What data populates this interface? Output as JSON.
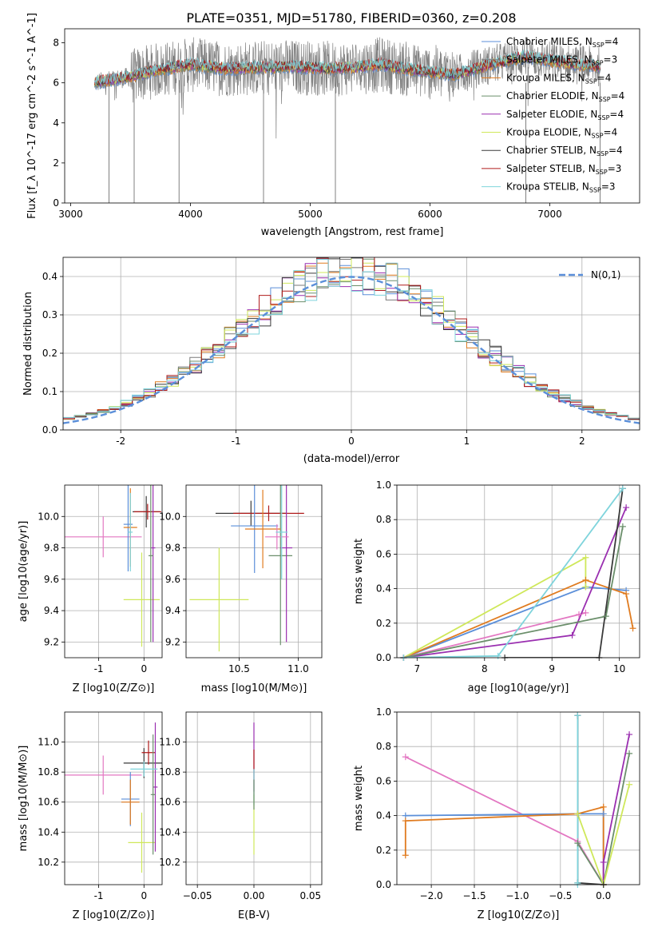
{
  "title": "PLATE=0351, MJD=51780, FIBERID=0360, z=0.208",
  "colors": {
    "Chabrier MILES": "#5b8fd9",
    "Salpeter MILES": "#7a7a7a",
    "Kroupa MILES": "#e07b1f",
    "Chabrier ELODIE": "#6b8f6b",
    "Salpeter ELODIE": "#9a2fb0",
    "Kroupa ELODIE": "#cfe85a",
    "Chabrier STELIB": "#3a3a3a",
    "Salpeter STELIB": "#b01c1c",
    "Kroupa STELIB": "#7fd4dc",
    "pink": "#e377c2",
    "normal": "#5b8fd9",
    "data": "#808080"
  },
  "chart_data": [
    {
      "id": "spectrum",
      "type": "line",
      "xlabel": "wavelength [Angstrom, rest frame]",
      "ylabel": "Flux [f_λ 10^-17 erg cm^-2 s^-1 A^-1]",
      "xlim": [
        2950,
        7750
      ],
      "ylim": [
        0,
        8.7
      ],
      "xticks": [
        3000,
        4000,
        5000,
        6000,
        7000
      ],
      "yticks": [
        0,
        2,
        4,
        6,
        8
      ],
      "legend_position": "right",
      "legend": [
        {
          "label": "Chabrier MILES, N_SSP=4",
          "color": "#5b8fd9"
        },
        {
          "label": "Salpeter MILES, N_SSP=3",
          "color": "#7a7a7a"
        },
        {
          "label": "Kroupa MILES, N_SSP=4",
          "color": "#e07b1f"
        },
        {
          "label": "Chabrier ELODIE, N_SSP=4",
          "color": "#6b8f6b"
        },
        {
          "label": "Salpeter ELODIE, N_SSP=4",
          "color": "#9a2fb0"
        },
        {
          "label": "Kroupa ELODIE, N_SSP=4",
          "color": "#cfe85a"
        },
        {
          "label": "Chabrier STELIB, N_SSP=4",
          "color": "#3a3a3a"
        },
        {
          "label": "Salpeter STELIB, N_SSP=3",
          "color": "#b01c1c"
        },
        {
          "label": "Kroupa STELIB, N_SSP=3",
          "color": "#7fd4dc"
        }
      ],
      "x_range_data": [
        3200,
        7420
      ],
      "continuum_knots": [
        [
          3200,
          6.0
        ],
        [
          3500,
          6.3
        ],
        [
          3700,
          6.6
        ],
        [
          4000,
          6.9
        ],
        [
          4300,
          6.7
        ],
        [
          4800,
          6.8
        ],
        [
          5200,
          6.7
        ],
        [
          5600,
          6.9
        ],
        [
          5900,
          6.6
        ],
        [
          6200,
          6.4
        ],
        [
          6500,
          6.9
        ],
        [
          6800,
          7.3
        ],
        [
          7100,
          7.0
        ],
        [
          7400,
          6.8
        ]
      ],
      "drops": [
        [
          3320,
          0
        ],
        [
          3530,
          0
        ],
        [
          3905,
          0
        ],
        [
          4610,
          0
        ],
        [
          5210,
          0
        ],
        [
          6800,
          0
        ],
        [
          7420,
          0
        ]
      ]
    },
    {
      "id": "residuals",
      "type": "step",
      "xlabel": "(data-model)/error",
      "ylabel": "Normed distribution",
      "xlim": [
        -2.5,
        2.5
      ],
      "ylim": [
        0,
        0.45
      ],
      "xticks": [
        -2,
        -1,
        0,
        1,
        2
      ],
      "yticks": [
        0.0,
        0.1,
        0.2,
        0.3,
        0.4
      ],
      "normal_label": "N(0,1)",
      "bin_width": 0.1,
      "series_count": 9
    },
    {
      "id": "z-age",
      "type": "errorbar",
      "xlabel": "Z [log10(Z/Z⊙)]",
      "ylabel": "age [log10(age/yr)]",
      "xlim": [
        -1.75,
        0.4
      ],
      "ylim": [
        9.1,
        10.2
      ],
      "xticks": [
        -1,
        0
      ],
      "yticks": [
        9.2,
        9.4,
        9.6,
        9.8,
        10.0
      ],
      "points": [
        {
          "x": -0.9,
          "y": 9.87,
          "xerr": 0.85,
          "yerr": 0.13,
          "color": "#e377c2"
        },
        {
          "x": -0.35,
          "y": 9.95,
          "xerr": 0.1,
          "yerr": 0.3,
          "color": "#5b8fd9"
        },
        {
          "x": -0.3,
          "y": 9.93,
          "xerr": 0.15,
          "yerr": 0.25,
          "color": "#e07b1f"
        },
        {
          "x": 0.05,
          "y": 10.03,
          "xerr": 0.3,
          "yerr": 0.1,
          "color": "#3a3a3a"
        },
        {
          "x": 0.08,
          "y": 10.03,
          "xerr": 0.3,
          "yerr": 0.05,
          "color": "#b01c1c"
        },
        {
          "x": -0.05,
          "y": 9.47,
          "xerr": 0.4,
          "yerr": 0.3,
          "color": "#cfe85a"
        },
        {
          "x": 0.2,
          "y": 9.8,
          "xerr": 0.05,
          "yerr": 0.6,
          "color": "#9a2fb0"
        },
        {
          "x": 0.15,
          "y": 9.75,
          "xerr": 0.05,
          "yerr": 0.55,
          "color": "#6b8f6b"
        },
        {
          "x": -0.3,
          "y": 9.9,
          "xerr": 0.05,
          "yerr": 0.25,
          "color": "#7fd4dc"
        }
      ]
    },
    {
      "id": "mass-age",
      "type": "errorbar",
      "xlabel": "mass [log10(M/M⊙)]",
      "ylabel": "",
      "xlim": [
        10.05,
        11.2
      ],
      "ylim": [
        9.1,
        10.2
      ],
      "xticks": [
        10.5,
        11.0
      ],
      "yticks": [
        9.2,
        9.4,
        9.6,
        9.8,
        10.0
      ],
      "points": [
        {
          "x": 10.33,
          "y": 9.47,
          "xerr": 0.25,
          "yerr": 0.33,
          "color": "#cfe85a"
        },
        {
          "x": 10.6,
          "y": 10.02,
          "xerr": 0.3,
          "yerr": 0.08,
          "color": "#3a3a3a"
        },
        {
          "x": 10.75,
          "y": 10.02,
          "xerr": 0.3,
          "yerr": 0.05,
          "color": "#b01c1c"
        },
        {
          "x": 10.85,
          "y": 9.75,
          "xerr": 0.1,
          "yerr": 0.57,
          "color": "#6b8f6b"
        },
        {
          "x": 10.9,
          "y": 9.8,
          "xerr": 0.05,
          "yerr": 0.6,
          "color": "#9a2fb0"
        },
        {
          "x": 10.63,
          "y": 9.94,
          "xerr": 0.2,
          "yerr": 0.3,
          "color": "#5b8fd9"
        },
        {
          "x": 10.7,
          "y": 9.92,
          "xerr": 0.15,
          "yerr": 0.25,
          "color": "#e07b1f"
        },
        {
          "x": 10.82,
          "y": 9.87,
          "xerr": 0.1,
          "yerr": 0.08,
          "color": "#e377c2"
        },
        {
          "x": 10.86,
          "y": 9.9,
          "xerr": 0.05,
          "yerr": 0.3,
          "color": "#7fd4dc"
        }
      ]
    },
    {
      "id": "age-weight",
      "type": "line",
      "xlabel": "age [log10(age/yr)]",
      "ylabel": "mass weight",
      "xlim": [
        6.7,
        10.3
      ],
      "ylim": [
        0,
        1.0
      ],
      "xticks": [
        7,
        8,
        9,
        10
      ],
      "yticks": [
        0.0,
        0.2,
        0.4,
        0.6,
        0.8,
        1.0
      ],
      "series": [
        {
          "color": "#5b8fd9",
          "x": [
            6.8,
            9.5,
            10.1
          ],
          "y": [
            0.0,
            0.41,
            0.39
          ]
        },
        {
          "color": "#e07b1f",
          "x": [
            6.8,
            9.5,
            10.1,
            10.2
          ],
          "y": [
            0.0,
            0.45,
            0.37,
            0.17
          ]
        },
        {
          "color": "#cfe85a",
          "x": [
            6.8,
            9.5,
            9.5
          ],
          "y": [
            0.0,
            0.58,
            0.41
          ]
        },
        {
          "color": "#e377c2",
          "x": [
            6.8,
            9.4,
            9.5
          ],
          "y": [
            0.0,
            0.25,
            0.26
          ]
        },
        {
          "color": "#9a2fb0",
          "x": [
            6.8,
            9.3,
            10.1
          ],
          "y": [
            0.0,
            0.13,
            0.87
          ]
        },
        {
          "color": "#6b8f6b",
          "x": [
            6.8,
            9.8,
            10.05
          ],
          "y": [
            0.0,
            0.24,
            0.76
          ]
        },
        {
          "color": "#3a3a3a",
          "x": [
            8.3,
            9.7,
            10.05
          ],
          "y": [
            0.0,
            0.0,
            0.98
          ]
        },
        {
          "color": "#7fd4dc",
          "x": [
            6.8,
            8.2,
            10.05
          ],
          "y": [
            0.0,
            0.01,
            0.98
          ]
        }
      ]
    },
    {
      "id": "z-mass",
      "type": "errorbar",
      "xlabel": "Z [log10(Z/Z⊙)]",
      "ylabel": "mass [log10(M/M⊙)]",
      "xlim": [
        -1.75,
        0.4
      ],
      "ylim": [
        10.05,
        11.2
      ],
      "xticks": [
        -1,
        0
      ],
      "yticks": [
        10.2,
        10.4,
        10.6,
        10.8,
        11.0
      ],
      "points": [
        {
          "x": -0.9,
          "y": 10.78,
          "xerr": 0.85,
          "yerr": 0.13,
          "color": "#e377c2"
        },
        {
          "x": -0.3,
          "y": 10.62,
          "xerr": 0.2,
          "yerr": 0.18,
          "color": "#5b8fd9"
        },
        {
          "x": -0.3,
          "y": 10.6,
          "xerr": 0.2,
          "yerr": 0.15,
          "color": "#e07b1f"
        },
        {
          "x": 0.0,
          "y": 10.86,
          "xerr": 0.45,
          "yerr": 0.1,
          "color": "#3a3a3a"
        },
        {
          "x": 0.1,
          "y": 10.93,
          "xerr": 0.15,
          "yerr": 0.08,
          "color": "#b01c1c"
        },
        {
          "x": -0.05,
          "y": 10.33,
          "xerr": 0.3,
          "yerr": 0.2,
          "color": "#cfe85a"
        },
        {
          "x": 0.25,
          "y": 10.7,
          "xerr": 0.05,
          "yerr": 0.43,
          "color": "#9a2fb0"
        },
        {
          "x": 0.2,
          "y": 10.65,
          "xerr": 0.05,
          "yerr": 0.4,
          "color": "#6b8f6b"
        },
        {
          "x": 0.0,
          "y": 10.82,
          "xerr": 0.3,
          "yerr": 0.05,
          "color": "#7fd4dc"
        }
      ]
    },
    {
      "id": "ebv-mass",
      "type": "errorbar",
      "xlabel": "E(B-V)",
      "ylabel": "",
      "xlim": [
        -0.06,
        0.06
      ],
      "ylim": [
        10.05,
        11.2
      ],
      "xticks": [
        -0.05,
        0.0,
        0.05
      ],
      "yticks": [
        10.2,
        10.4,
        10.6,
        10.8,
        11.0
      ],
      "points": [
        {
          "x": 0.0,
          "y": 10.9,
          "xerr": 0.0,
          "yerr": 0.23,
          "color": "#9a2fb0"
        },
        {
          "x": 0.0,
          "y": 10.85,
          "xerr": 0.0,
          "yerr": 0.1,
          "color": "#b01c1c"
        },
        {
          "x": 0.0,
          "y": 10.45,
          "xerr": 0.0,
          "yerr": 0.2,
          "color": "#cfe85a"
        },
        {
          "x": 0.0,
          "y": 10.7,
          "xerr": 0.0,
          "yerr": 0.12,
          "color": "#7fd4dc"
        },
        {
          "x": 0.0,
          "y": 10.65,
          "xerr": 0.0,
          "yerr": 0.1,
          "color": "#6b8f6b"
        }
      ]
    },
    {
      "id": "z-weight",
      "type": "line",
      "xlabel": "Z [log10(Z/Z⊙)]",
      "ylabel": "mass weight",
      "xlim": [
        -2.4,
        0.42
      ],
      "ylim": [
        0,
        1.0
      ],
      "xticks": [
        -2.0,
        -1.5,
        -1.0,
        -0.5,
        0.0
      ],
      "yticks": [
        0.0,
        0.2,
        0.4,
        0.6,
        0.8,
        1.0
      ],
      "series": [
        {
          "color": "#e377c2",
          "x": [
            -2.3,
            -0.3,
            0.0
          ],
          "y": [
            0.74,
            0.25,
            0.0
          ]
        },
        {
          "color": "#5b8fd9",
          "x": [
            -2.3,
            -0.3,
            0.0,
            0.0
          ],
          "y": [
            0.4,
            0.41,
            0.41,
            0.0
          ]
        },
        {
          "color": "#e07b1f",
          "x": [
            -2.3,
            -2.3,
            -0.3,
            0.0,
            0.0
          ],
          "y": [
            0.17,
            0.37,
            0.41,
            0.45,
            0.0
          ]
        },
        {
          "color": "#9a2fb0",
          "x": [
            0.0,
            0.0,
            0.3
          ],
          "y": [
            0.0,
            0.13,
            0.87
          ]
        },
        {
          "color": "#6b8f6b",
          "x": [
            -0.3,
            0.0,
            0.3
          ],
          "y": [
            0.24,
            0.0,
            0.76
          ]
        },
        {
          "color": "#cfe85a",
          "x": [
            -0.3,
            0.0,
            0.3
          ],
          "y": [
            0.41,
            0.0,
            0.58
          ]
        },
        {
          "color": "#3a3a3a",
          "x": [
            -0.3,
            -0.3,
            0.0
          ],
          "y": [
            0.98,
            0.01,
            0.0
          ]
        },
        {
          "color": "#7fd4dc",
          "x": [
            -0.3,
            -0.3,
            -0.3
          ],
          "y": [
            0.0,
            0.98,
            0.01
          ]
        }
      ]
    }
  ]
}
